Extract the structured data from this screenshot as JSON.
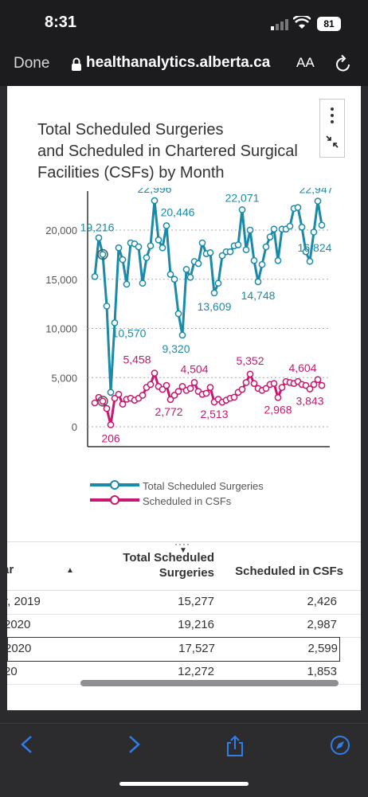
{
  "status": {
    "time": "8:31",
    "battery": "81"
  },
  "browser": {
    "done_label": "Done",
    "url": "healthanalytics.alberta.ca",
    "text_size_label": "AA"
  },
  "chart_title_lines": [
    "Total Scheduled Surgeries",
    "and Scheduled in Chartered Surgical",
    "Facilities (CSFs) by Month"
  ],
  "chart_data": {
    "type": "line",
    "title": "Total Scheduled Surgeries and Scheduled in Chartered Surgical Facilities (CSFs) by Month",
    "ylim": [
      0,
      25000
    ],
    "yticks": [
      "0",
      "5,000",
      "10,000",
      "15,000",
      "20,000"
    ],
    "grid": true,
    "legend_placement": "bottom",
    "series": [
      {
        "name": "Total Scheduled Surgeries",
        "color": "#1a8aa8",
        "values": [
          15277,
          19216,
          17527,
          12272,
          3500,
          10570,
          18200,
          17000,
          14500,
          18700,
          18600,
          18300,
          14600,
          17200,
          18400,
          22996,
          19000,
          18200,
          20446,
          15500,
          15000,
          11500,
          9320,
          16000,
          15200,
          16800,
          16600,
          18700,
          17600,
          17700,
          13609,
          14600,
          17400,
          17800,
          17800,
          18400,
          18500,
          22071,
          18000,
          20000,
          16900,
          14748,
          16500,
          18300,
          19300,
          20100,
          16900,
          20100,
          20100,
          20400,
          22200,
          22300,
          20300,
          17800,
          16824,
          19800,
          22947,
          20500
        ]
      },
      {
        "name": "Scheduled in CSFs",
        "color": "#c9176f",
        "values": [
          2426,
          2987,
          2599,
          1853,
          206,
          2900,
          3300,
          2300,
          2800,
          2900,
          2700,
          2900,
          3200,
          4000,
          4300,
          5458,
          4100,
          3800,
          4200,
          2772,
          3200,
          3600,
          4100,
          3700,
          3900,
          4504,
          3600,
          3300,
          3400,
          4000,
          2513,
          2800,
          2500,
          2700,
          2900,
          3000,
          3500,
          3800,
          4500,
          5352,
          4400,
          3900,
          3700,
          3900,
          4300,
          4400,
          2968,
          4000,
          4600,
          4500,
          4400,
          4604,
          4300,
          4200,
          3843,
          4300,
          4800,
          4200
        ]
      }
    ],
    "labels": {
      "blue": [
        {
          "text": "19,216",
          "i": 1
        },
        {
          "text": "10,570",
          "i": 5
        },
        {
          "text": "22,996",
          "i": 15
        },
        {
          "text": "20,446",
          "i": 18
        },
        {
          "text": "9,320",
          "i": 22
        },
        {
          "text": "13,609",
          "i": 30
        },
        {
          "text": "22,071",
          "i": 37
        },
        {
          "text": "14,748",
          "i": 41
        },
        {
          "text": "22,947",
          "i": 56
        },
        {
          "text": "16,824",
          "i": 54
        }
      ],
      "pink": [
        {
          "text": "206",
          "i": 4
        },
        {
          "text": "5,458",
          "i": 15
        },
        {
          "text": "2,772",
          "i": 19
        },
        {
          "text": "4,504",
          "i": 25
        },
        {
          "text": "2,513",
          "i": 30
        },
        {
          "text": "5,352",
          "i": 39
        },
        {
          "text": "2,968",
          "i": 46
        },
        {
          "text": "4,604",
          "i": 51
        },
        {
          "text": "3,843",
          "i": 54
        }
      ]
    }
  },
  "legend": [
    {
      "label": "Total Scheduled Surgeries",
      "color": "#1a8aa8"
    },
    {
      "label": "Scheduled in CSFs",
      "color": "#c9176f"
    }
  ],
  "table": {
    "headers": {
      "col1": "ar",
      "col2_line1": "Total Scheduled",
      "col2_line2": "Surgeries",
      "col3": "Scheduled in CSFs"
    },
    "rows": [
      {
        "c1": "r, 2019",
        "c2": "15,277",
        "c3": "2,426"
      },
      {
        "c1": "2020",
        "c2": "19,216",
        "c3": "2,987"
      },
      {
        "c1": "2020",
        "c2": "17,527",
        "c3": "2,599"
      },
      {
        "c1": "20",
        "c2": "12,272",
        "c3": "1,853"
      }
    ]
  }
}
